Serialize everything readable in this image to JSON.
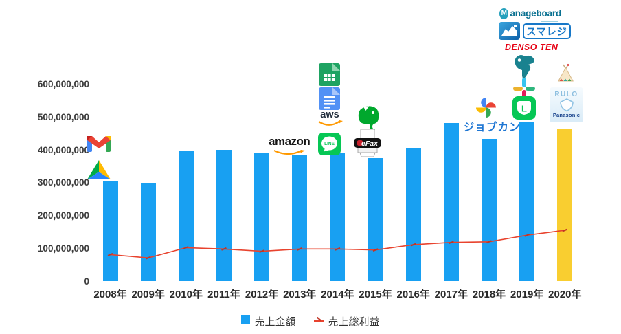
{
  "chart_data": {
    "type": "bar+line",
    "title": "",
    "categories": [
      "2008年",
      "2009年",
      "2010年",
      "2011年",
      "2012年",
      "2013年",
      "2014年",
      "2015年",
      "2016年",
      "2017年",
      "2018年",
      "2019年",
      "2020年"
    ],
    "series": [
      {
        "name": "売上金額",
        "type": "bar",
        "bar_color": "#18A0F2",
        "last_bar_color": "#F9CE30",
        "values": [
          305000000,
          301000000,
          400000000,
          402000000,
          390000000,
          385000000,
          392000000,
          376000000,
          405000000,
          483000000,
          436000000,
          485000000,
          467000000
        ]
      },
      {
        "name": "売上総利益",
        "type": "line",
        "line_color": "#E8432E",
        "marker_color": "#C03525",
        "values": [
          82000000,
          72000000,
          103000000,
          99000000,
          92000000,
          99000000,
          99000000,
          96000000,
          112000000,
          119000000,
          121000000,
          141000000,
          156000000
        ]
      }
    ],
    "yticks": [
      0,
      100000000,
      200000000,
      300000000,
      400000000,
      500000000,
      600000000
    ],
    "ylim": [
      0,
      630000000
    ],
    "xlabel": "",
    "ylabel": "",
    "grid": true,
    "legend_position": "bottom"
  },
  "logo_text": {
    "amazon": "amazon",
    "aws": "aws",
    "line": "LINE",
    "efax": "eFax",
    "jobcan": "ジョブカン",
    "manageboard_m": "M",
    "manageboard_rest": "anageboard",
    "smaregi": "スマレジ",
    "denso_ten": "DENSO TEN",
    "line_works_l": "L",
    "rulo": "RULO",
    "panasonic": "Panasonic"
  },
  "icons": [
    {
      "name": "gmail-icon",
      "column": "2008年"
    },
    {
      "name": "google-drive-icon",
      "column": "2008年"
    },
    {
      "name": "amazon-logo",
      "column": "2013年"
    },
    {
      "name": "google-sheets-icon",
      "column": "2014年"
    },
    {
      "name": "google-docs-icon",
      "column": "2014年"
    },
    {
      "name": "aws-logo",
      "column": "2014年"
    },
    {
      "name": "line-icon",
      "column": "2014年"
    },
    {
      "name": "evernote-icon",
      "column": "2015年"
    },
    {
      "name": "efax-logo",
      "column": "2015年"
    },
    {
      "name": "google-photos-icon",
      "column": "2017年"
    },
    {
      "name": "jobcan-logo",
      "column": "2017年"
    },
    {
      "name": "manageboard-logo",
      "column": "2019年"
    },
    {
      "name": "manageboard-app-icon",
      "column": "2019年"
    },
    {
      "name": "smaregi-logo",
      "column": "2019年"
    },
    {
      "name": "denso-ten-logo",
      "column": "2019年"
    },
    {
      "name": "teal-mascot-icon",
      "column": "2019年"
    },
    {
      "name": "slack-icon",
      "column": "2019年"
    },
    {
      "name": "line-works-icon",
      "column": "2019年"
    },
    {
      "name": "tipi-tent-icon",
      "column": "2020年"
    },
    {
      "name": "rulo-panasonic-logo",
      "column": "2020年"
    }
  ]
}
